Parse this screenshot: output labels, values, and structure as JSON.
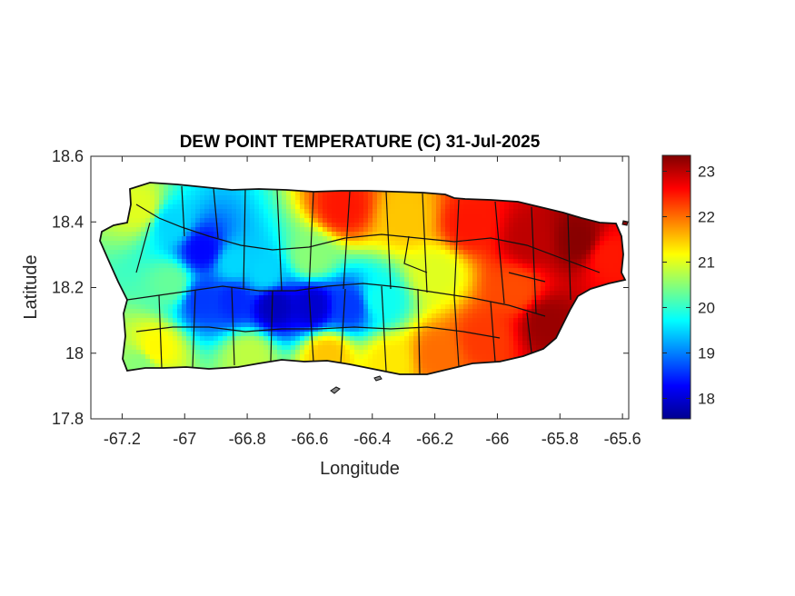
{
  "chart_data": {
    "type": "heatmap",
    "title": "DEW POINT TEMPERATURE (C) 31-Jul-2025",
    "xlabel": "Longitude",
    "ylabel": "Latitude",
    "xlim": [
      -67.3,
      -65.58
    ],
    "ylim": [
      17.8,
      18.6
    ],
    "xticks": [
      -67.2,
      -67,
      -66.8,
      -66.6,
      -66.4,
      -66.2,
      -66,
      -65.8,
      -65.6
    ],
    "xtick_labels": [
      "-67.2",
      "-67",
      "-66.8",
      "-66.6",
      "-66.4",
      "-66.2",
      "-66",
      "-65.8",
      "-65.6"
    ],
    "yticks": [
      17.8,
      18,
      18.2,
      18.4,
      18.6
    ],
    "ytick_labels": [
      "17.8",
      "18",
      "18.2",
      "18.4",
      "18.6"
    ],
    "colormap": "jet",
    "colorbar": {
      "range": [
        17.55,
        23.35
      ],
      "ticks": [
        18,
        19,
        20,
        21,
        22,
        23
      ],
      "tick_labels": [
        "18",
        "19",
        "20",
        "21",
        "22",
        "23"
      ]
    },
    "grid": false,
    "region": "Puerto Rico",
    "field_points": [
      {
        "lon": -67.15,
        "lat": 18.45,
        "value": 21.0
      },
      {
        "lon": -67.05,
        "lat": 18.4,
        "value": 19.5
      },
      {
        "lon": -66.95,
        "lat": 18.32,
        "value": 18.3
      },
      {
        "lon": -66.85,
        "lat": 18.28,
        "value": 19.5
      },
      {
        "lon": -66.75,
        "lat": 18.25,
        "value": 19.5
      },
      {
        "lon": -66.6,
        "lat": 18.3,
        "value": 20.5
      },
      {
        "lon": -66.95,
        "lat": 18.17,
        "value": 18.6
      },
      {
        "lon": -66.85,
        "lat": 18.17,
        "value": 18.5
      },
      {
        "lon": -66.72,
        "lat": 18.15,
        "value": 17.9
      },
      {
        "lon": -66.6,
        "lat": 18.15,
        "value": 18.0
      },
      {
        "lon": -66.48,
        "lat": 18.15,
        "value": 18.6
      },
      {
        "lon": -66.38,
        "lat": 18.17,
        "value": 19.8
      },
      {
        "lon": -67.05,
        "lat": 18.22,
        "value": 20.3
      },
      {
        "lon": -66.5,
        "lat": 18.45,
        "value": 22.5
      },
      {
        "lon": -66.3,
        "lat": 18.42,
        "value": 21.5
      },
      {
        "lon": -66.1,
        "lat": 18.4,
        "value": 22.5
      },
      {
        "lon": -65.9,
        "lat": 18.35,
        "value": 23.0
      },
      {
        "lon": -65.75,
        "lat": 18.35,
        "value": 23.3
      },
      {
        "lon": -65.65,
        "lat": 18.3,
        "value": 22.5
      },
      {
        "lon": -65.85,
        "lat": 18.1,
        "value": 23.2
      },
      {
        "lon": -65.95,
        "lat": 18.2,
        "value": 22.2
      },
      {
        "lon": -66.05,
        "lat": 18.05,
        "value": 22.3
      },
      {
        "lon": -66.2,
        "lat": 18.0,
        "value": 22.0
      },
      {
        "lon": -66.35,
        "lat": 17.98,
        "value": 21.3
      },
      {
        "lon": -66.55,
        "lat": 18.0,
        "value": 21.5
      },
      {
        "lon": -66.8,
        "lat": 18.0,
        "value": 20.8
      },
      {
        "lon": -67.1,
        "lat": 18.02,
        "value": 21.2
      },
      {
        "lon": -67.15,
        "lat": 17.97,
        "value": 20.5
      },
      {
        "lon": -66.2,
        "lat": 18.25,
        "value": 21.0
      }
    ]
  }
}
